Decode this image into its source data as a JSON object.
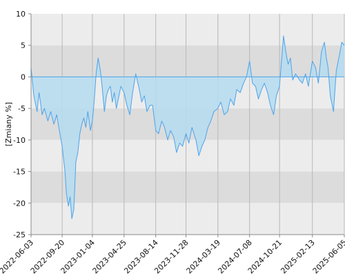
{
  "chart_data": {
    "type": "area",
    "title": "",
    "xlabel": "",
    "ylabel": "[Zmiany %]",
    "ylim": [
      -25,
      10
    ],
    "xlim": [
      "2022-06-03",
      "2025-06-05"
    ],
    "y_ticks": [
      10,
      5,
      0,
      -5,
      -10,
      -15,
      -20,
      -25
    ],
    "x_tick_labels": [
      "2022-06-03",
      "2022-09-20",
      "2023-01-04",
      "2023-04-25",
      "2023-08-14",
      "2023-11-28",
      "2024-03-19",
      "2024-07-08",
      "2024-10-21",
      "2025-02-13",
      "2025-06-05"
    ],
    "grid": "vertical lines at date ticks, alternating horizontal bands",
    "legend": "none",
    "colors": {
      "line": "#4da3ea",
      "fill": "#b5dcf0",
      "band_light": "#ececec",
      "band_dark": "#dcdcdc",
      "zero_line": "#4da3ea"
    },
    "series": [
      {
        "x": [
          "2022-06-03",
          "2022-06-13",
          "2022-06-24",
          "2022-07-01",
          "2022-07-12",
          "2022-07-20",
          "2022-08-01",
          "2022-08-11",
          "2022-08-22",
          "2022-09-01",
          "2022-09-12",
          "2022-09-20",
          "2022-09-30",
          "2022-10-05",
          "2022-10-12",
          "2022-10-18",
          "2022-10-24",
          "2022-10-31",
          "2022-11-07",
          "2022-11-14",
          "2022-11-21",
          "2022-11-28",
          "2022-12-05",
          "2022-12-12",
          "2022-12-19",
          "2022-12-28",
          "2023-01-04",
          "2023-01-10",
          "2023-01-17",
          "2023-01-24",
          "2023-02-01",
          "2023-02-08",
          "2023-02-15",
          "2023-02-22",
          "2023-03-01",
          "2023-03-08",
          "2023-03-15",
          "2023-03-22",
          "2023-03-29",
          "2023-04-05",
          "2023-04-14",
          "2023-04-25",
          "2023-05-05",
          "2023-05-15",
          "2023-05-25",
          "2023-06-05",
          "2023-06-15",
          "2023-06-26",
          "2023-07-05",
          "2023-07-14",
          "2023-07-25",
          "2023-08-03",
          "2023-08-14",
          "2023-08-24",
          "2023-09-04",
          "2023-09-14",
          "2023-09-25",
          "2023-10-05",
          "2023-10-16",
          "2023-10-26",
          "2023-11-06",
          "2023-11-16",
          "2023-11-28",
          "2023-12-08",
          "2023-12-19",
          "2024-01-02",
          "2024-01-12",
          "2024-01-23",
          "2024-02-02",
          "2024-02-13",
          "2024-02-23",
          "2024-03-05",
          "2024-03-19",
          "2024-03-29",
          "2024-04-10",
          "2024-04-22",
          "2024-05-02",
          "2024-05-14",
          "2024-05-24",
          "2024-06-05",
          "2024-06-17",
          "2024-06-27",
          "2024-07-08",
          "2024-07-18",
          "2024-07-29",
          "2024-08-08",
          "2024-08-19",
          "2024-08-29",
          "2024-09-09",
          "2024-09-19",
          "2024-09-30",
          "2024-10-10",
          "2024-10-21",
          "2024-10-28",
          "2024-11-04",
          "2024-11-12",
          "2024-11-20",
          "2024-11-28",
          "2024-12-06",
          "2024-12-16",
          "2024-12-30",
          "2025-01-09",
          "2025-01-20",
          "2025-01-30",
          "2025-02-13",
          "2025-02-24",
          "2025-03-06",
          "2025-03-17",
          "2025-03-27",
          "2025-04-03",
          "2025-04-09",
          "2025-04-17",
          "2025-04-28",
          "2025-05-08",
          "2025-05-19",
          "2025-05-27",
          "2025-06-05"
        ],
        "values": [
          1.5,
          -3.0,
          -5.5,
          -2.5,
          -6.0,
          -5.0,
          -7.0,
          -5.5,
          -7.5,
          -6.0,
          -9.0,
          -11.0,
          -15.0,
          -18.5,
          -20.5,
          -19.0,
          -22.5,
          -21.0,
          -13.5,
          -12.0,
          -9.0,
          -7.5,
          -6.5,
          -8.0,
          -5.5,
          -8.5,
          -7.0,
          -4.0,
          0.5,
          3.0,
          1.0,
          -2.0,
          -5.5,
          -3.0,
          -2.0,
          -1.5,
          -4.0,
          -2.5,
          -5.0,
          -3.5,
          -1.5,
          -2.5,
          -4.5,
          -6.0,
          -2.5,
          0.5,
          -1.5,
          -4.0,
          -3.0,
          -5.5,
          -4.5,
          -4.5,
          -8.5,
          -9.0,
          -7.0,
          -8.0,
          -10.0,
          -8.5,
          -9.5,
          -12.0,
          -10.5,
          -11.0,
          -9.0,
          -10.5,
          -8.0,
          -10.0,
          -12.5,
          -11.0,
          -10.0,
          -8.0,
          -7.0,
          -5.5,
          -5.0,
          -4.0,
          -6.0,
          -5.5,
          -3.5,
          -4.5,
          -2.0,
          -2.5,
          -1.0,
          0.0,
          2.5,
          -1.0,
          -1.5,
          -3.5,
          -2.0,
          -1.0,
          -2.5,
          -4.5,
          -6.0,
          -3.0,
          -1.5,
          2.5,
          6.5,
          4.0,
          2.0,
          3.0,
          -0.5,
          0.5,
          -0.5,
          -1.0,
          0.5,
          -1.5,
          2.5,
          1.5,
          -1.0,
          4.0,
          5.5,
          3.0,
          1.5,
          -3.0,
          -5.5,
          1.0,
          3.5,
          5.5,
          5.0
        ]
      }
    ]
  }
}
